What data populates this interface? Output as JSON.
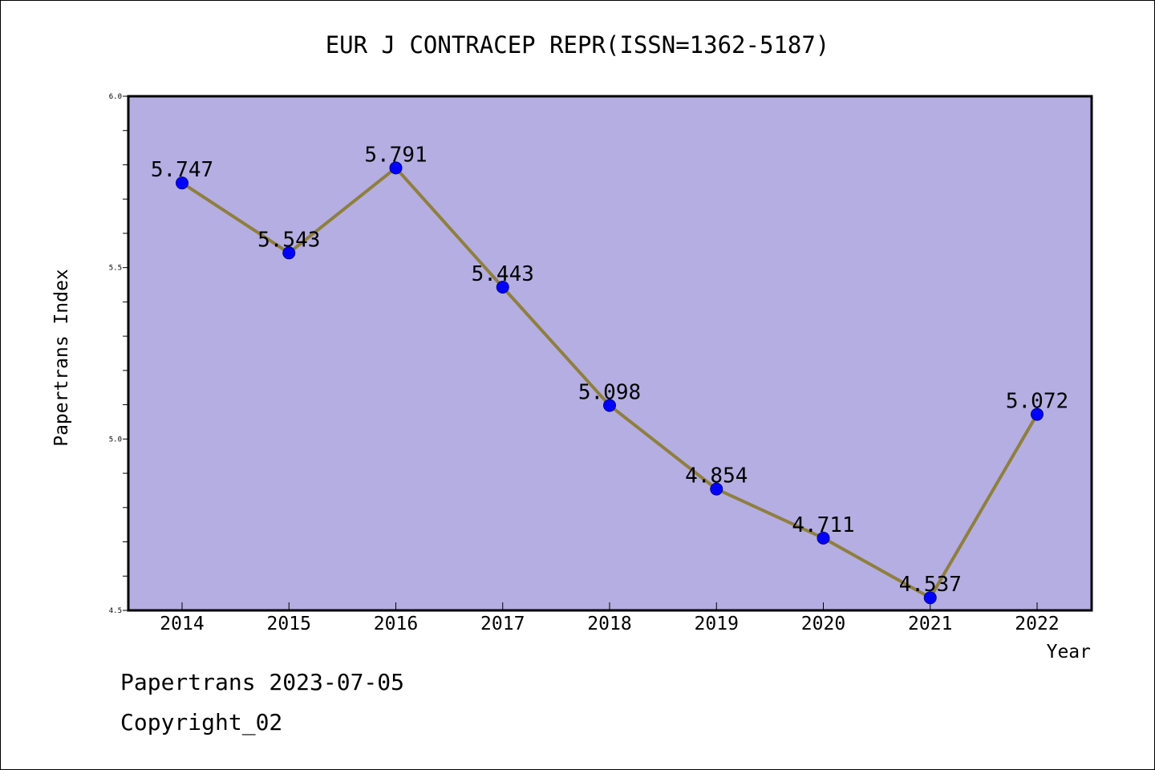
{
  "chart_data": {
    "type": "line",
    "title": "EUR J CONTRACEP REPR(ISSN=1362-5187)",
    "xlabel": "Year",
    "ylabel": "Papertrans Index",
    "categories": [
      "2014",
      "2015",
      "2016",
      "2017",
      "2018",
      "2019",
      "2020",
      "2021",
      "2022"
    ],
    "series": [
      {
        "values": [
          5.747,
          5.543,
          5.791,
          5.443,
          5.098,
          4.854,
          4.711,
          4.537,
          5.072
        ],
        "labels": [
          "5.747",
          "5.543",
          "5.791",
          "5.443",
          "5.098",
          "4.854",
          "4.711",
          "4.537",
          "5.072"
        ]
      }
    ],
    "ylim": [
      4.5,
      6.0
    ],
    "yticks": [
      "4.5",
      "5.0",
      "5.5",
      "6.0"
    ],
    "grid": false,
    "colors": {
      "plot_background": "#b4aee2",
      "line": "#8f7f3d",
      "marker": "#0000ff"
    }
  },
  "footer": {
    "date_line": "Papertrans 2023-07-05",
    "copyright_line": "Copyright_02"
  }
}
